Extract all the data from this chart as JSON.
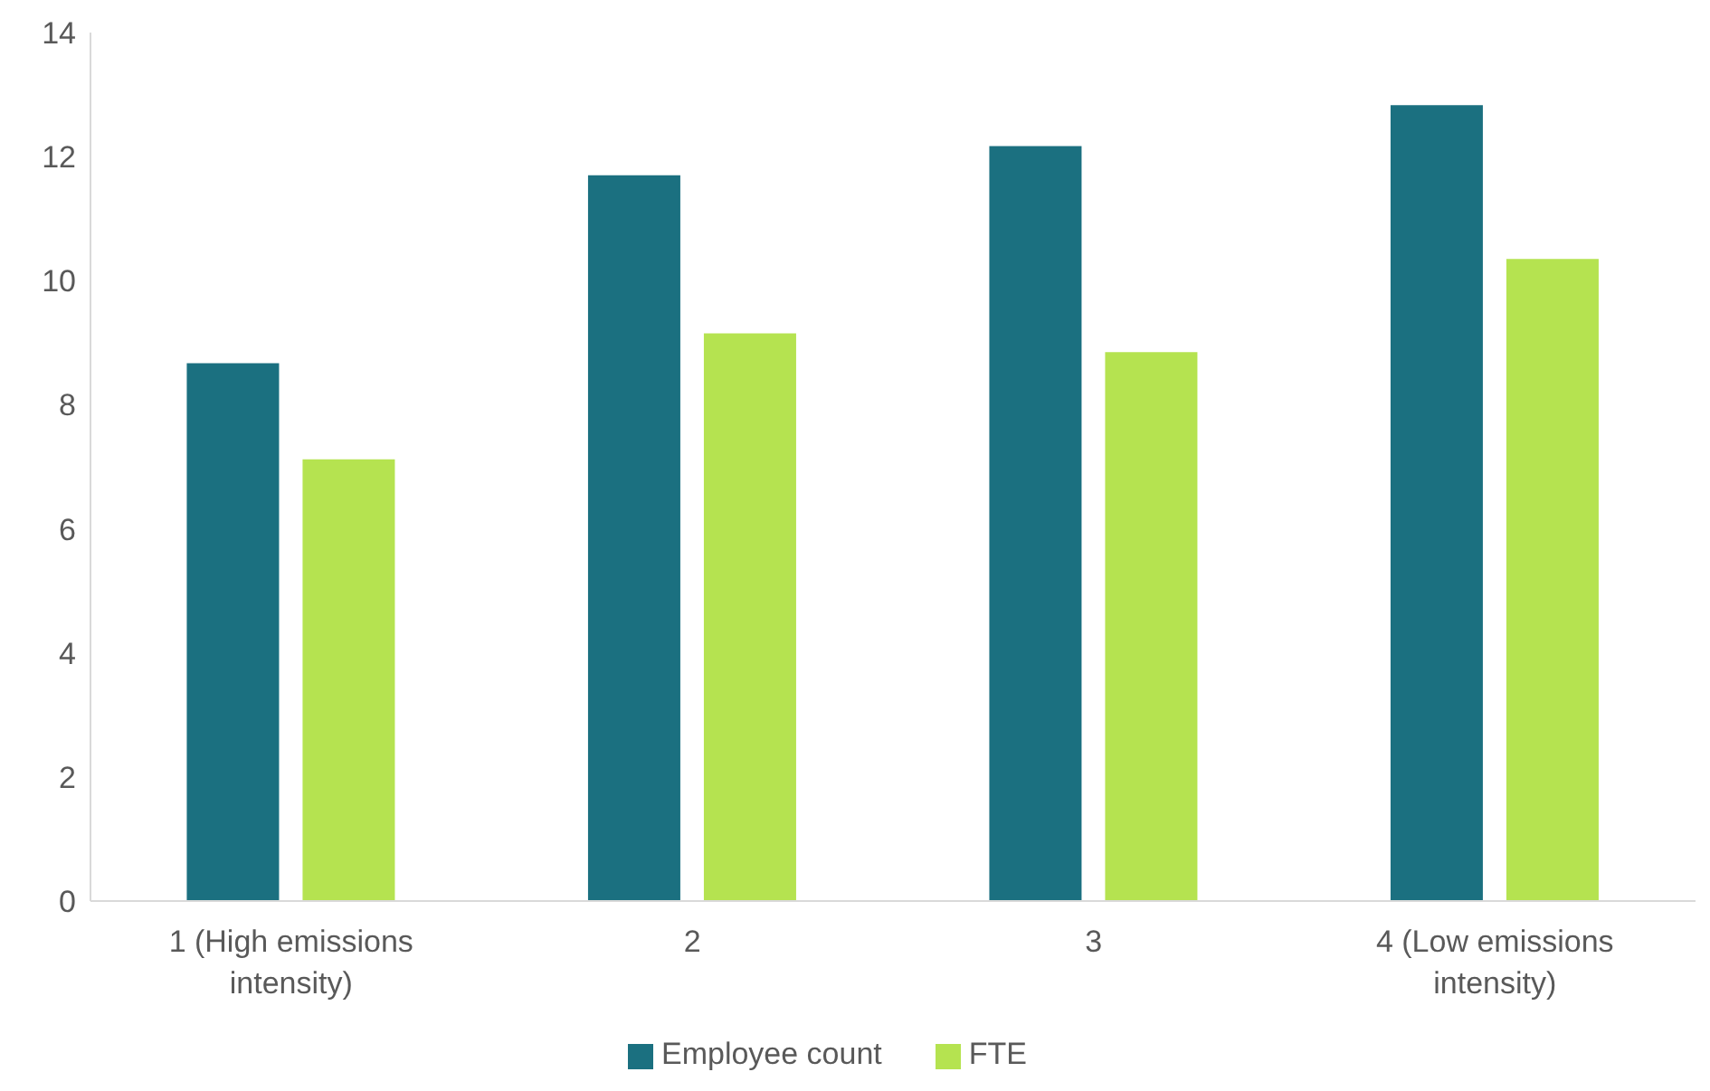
{
  "chart_data": {
    "type": "bar",
    "categories": [
      "1 (High emissions intensity)",
      "2",
      "3",
      "4 (Low emissions intensity)"
    ],
    "series": [
      {
        "name": "Employee count",
        "color": "#1b7080",
        "values": [
          8.67,
          11.7,
          12.17,
          12.83
        ]
      },
      {
        "name": "FTE",
        "color": "#b5e350",
        "values": [
          7.12,
          9.15,
          8.85,
          10.35
        ]
      }
    ],
    "ylim": [
      0,
      14
    ],
    "yticks": [
      0,
      2,
      4,
      6,
      8,
      10,
      12,
      14
    ],
    "grid": false,
    "legend": "bottom"
  }
}
